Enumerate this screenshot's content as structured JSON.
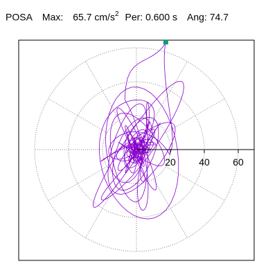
{
  "header": {
    "station": "POSA",
    "max_label": "Max:",
    "max_value": "65.7",
    "max_unit": "cm/s",
    "max_unit_exp": "2",
    "per_label": "Per:",
    "per_value": "0.600 s",
    "ang_label": "Ang:",
    "ang_value": "74.7"
  },
  "colors": {
    "trace": "#8800cc",
    "marker": "#11997a",
    "grid": "#808080",
    "axis": "#000000"
  },
  "chart_data": {
    "type": "line",
    "title": "",
    "xlabel": "",
    "ylabel": "",
    "polar_rings": [
      20,
      40,
      60
    ],
    "spoke_angle_step_deg": 30,
    "xlim": [
      -70,
      70
    ],
    "ylim": [
      -70,
      70
    ],
    "x_ticks": [
      20,
      40,
      60
    ],
    "x_tick_labels": [
      "20",
      "40",
      "60"
    ],
    "max_point": {
      "r": 65.7,
      "angle_deg": 74.7,
      "x": 17.3,
      "y": 63.4
    },
    "grid": true,
    "legend": "none"
  }
}
